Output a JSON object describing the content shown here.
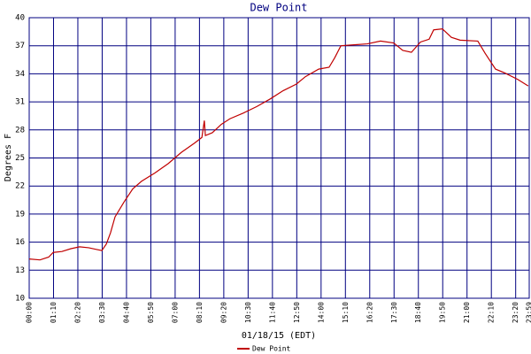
{
  "chart_data": {
    "type": "line",
    "title": "Dew Point",
    "x_label": "01/18/15 (EDT)",
    "y_label": "Degrees F",
    "x": [
      0,
      31,
      56,
      69,
      94,
      120,
      145,
      171,
      196,
      209,
      222,
      234,
      247,
      273,
      298,
      323,
      362,
      400,
      438,
      476,
      497,
      504,
      507,
      527,
      553,
      578,
      616,
      655,
      693,
      731,
      769,
      795,
      833,
      863,
      879,
      897,
      935,
      973,
      1011,
      1049,
      1075,
      1100,
      1126,
      1151,
      1164,
      1189,
      1215,
      1240,
      1291,
      1312,
      1342,
      1368,
      1406,
      1436
    ],
    "series": [
      {
        "name": "Dew Point",
        "color": "#c00000",
        "values": [
          14.2,
          14.1,
          14.4,
          14.9,
          15.0,
          15.3,
          15.5,
          15.4,
          15.2,
          15.1,
          15.8,
          17.0,
          18.7,
          20.3,
          21.7,
          22.5,
          23.4,
          24.4,
          25.6,
          26.6,
          27.2,
          29.0,
          27.4,
          27.7,
          28.6,
          29.2,
          29.8,
          30.5,
          31.3,
          32.2,
          32.9,
          33.7,
          34.5,
          34.7,
          35.7,
          37.0,
          37.1,
          37.2,
          37.5,
          37.3,
          36.5,
          36.3,
          37.4,
          37.7,
          38.7,
          38.8,
          37.9,
          37.6,
          37.5,
          36.2,
          34.5,
          34.1,
          33.4,
          32.7
        ]
      }
    ],
    "xlim": [
      0,
      1439
    ],
    "xticks": [
      {
        "value": 0,
        "label": "00:00"
      },
      {
        "value": 70,
        "label": "01:10"
      },
      {
        "value": 140,
        "label": "02:20"
      },
      {
        "value": 210,
        "label": "03:30"
      },
      {
        "value": 280,
        "label": "04:40"
      },
      {
        "value": 350,
        "label": "05:50"
      },
      {
        "value": 420,
        "label": "07:00"
      },
      {
        "value": 490,
        "label": "08:10"
      },
      {
        "value": 560,
        "label": "09:20"
      },
      {
        "value": 630,
        "label": "10:30"
      },
      {
        "value": 700,
        "label": "11:40"
      },
      {
        "value": 770,
        "label": "12:50"
      },
      {
        "value": 840,
        "label": "14:00"
      },
      {
        "value": 910,
        "label": "15:10"
      },
      {
        "value": 980,
        "label": "16:20"
      },
      {
        "value": 1050,
        "label": "17:30"
      },
      {
        "value": 1120,
        "label": "18:40"
      },
      {
        "value": 1190,
        "label": "19:50"
      },
      {
        "value": 1260,
        "label": "21:00"
      },
      {
        "value": 1330,
        "label": "22:10"
      },
      {
        "value": 1400,
        "label": "23:20"
      },
      {
        "value": 1439,
        "label": "23:59"
      }
    ],
    "ylim": [
      10,
      40
    ],
    "yticks": [
      10,
      13,
      16,
      19,
      22,
      25,
      28,
      31,
      34,
      37,
      40
    ],
    "grid": true,
    "grid_color": "#000080"
  }
}
